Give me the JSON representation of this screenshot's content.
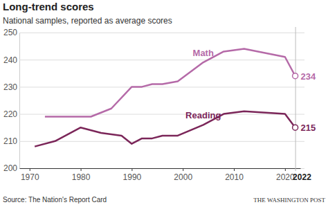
{
  "chart_data": {
    "type": "line",
    "title": "Long-trend scores",
    "subtitle": "National samples, reported as average scores",
    "source": "Source: The Nation's Report Card",
    "credit": "THE WASHINGTON POST",
    "xlim": [
      1968,
      2023
    ],
    "xticks": [
      1970,
      1980,
      1990,
      2000,
      2010,
      2020,
      2022
    ],
    "ylim": [
      200,
      250
    ],
    "yticks": [
      200,
      210,
      220,
      230,
      240,
      250
    ],
    "grid": true,
    "series": [
      {
        "name": "Math",
        "color": "#b56aa8",
        "marker": "circle",
        "x": [
          1973,
          1978,
          1982,
          1986,
          1990,
          1992,
          1994,
          1996,
          1999,
          2004,
          2008,
          2012,
          2020,
          2022
        ],
        "values": [
          219,
          219,
          219,
          222,
          230,
          230,
          231,
          231,
          232,
          239,
          243,
          244,
          241,
          234
        ],
        "value_labels": [
          null,
          null,
          null,
          null,
          null,
          null,
          null,
          null,
          null,
          null,
          null,
          null,
          null,
          "234"
        ]
      },
      {
        "name": "Reading",
        "color": "#7b2659",
        "marker": "circle",
        "x": [
          1971,
          1975,
          1980,
          1984,
          1988,
          1990,
          1992,
          1994,
          1996,
          1999,
          2004,
          2008,
          2012,
          2020,
          2022
        ],
        "values": [
          208,
          210,
          215,
          213,
          212,
          209,
          211,
          211,
          212,
          212,
          216,
          220,
          221,
          220,
          215
        ],
        "value_labels": [
          null,
          null,
          null,
          null,
          null,
          null,
          null,
          null,
          null,
          null,
          null,
          null,
          null,
          null,
          "215"
        ]
      }
    ]
  }
}
